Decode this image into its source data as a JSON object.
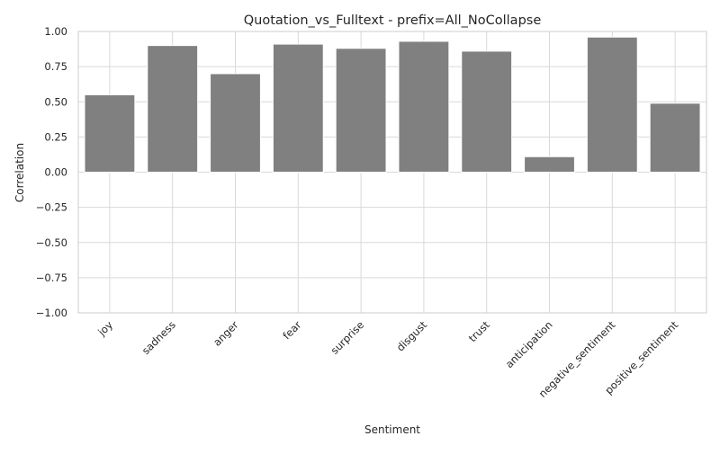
{
  "chart_data": {
    "type": "bar",
    "title": "Quotation_vs_Fulltext - prefix=All_NoCollapse",
    "xlabel": "Sentiment",
    "ylabel": "Correlation",
    "categories": [
      "joy",
      "sadness",
      "anger",
      "fear",
      "surprise",
      "disgust",
      "trust",
      "anticipation",
      "negative_sentiment",
      "positive_sentiment"
    ],
    "values": [
      0.55,
      0.9,
      0.7,
      0.91,
      0.88,
      0.93,
      0.86,
      0.11,
      0.96,
      0.49
    ],
    "ylim": [
      -1.0,
      1.0
    ],
    "yticks": [
      "1.00",
      "0.75",
      "0.50",
      "0.25",
      "0.00",
      "−0.25",
      "−0.50",
      "−0.75",
      "−1.00"
    ],
    "bar_color": "#808080",
    "grid": true,
    "grid_axis": "y"
  }
}
